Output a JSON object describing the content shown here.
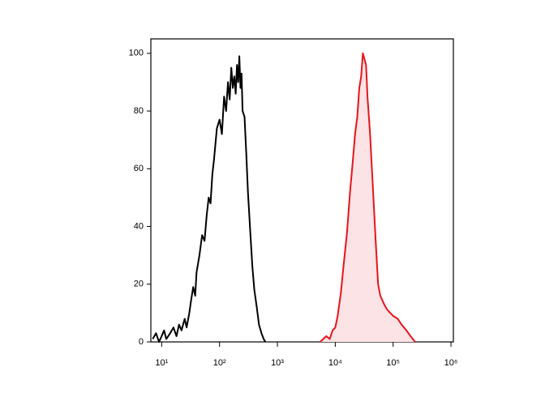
{
  "chart_data": {
    "type": "line",
    "log_x": true,
    "xlim": [
      6.5,
      1100000
    ],
    "ylim": [
      0,
      105
    ],
    "xticks": [
      {
        "value": 10,
        "label": "10¹"
      },
      {
        "value": 100,
        "label": "10²"
      },
      {
        "value": 1000,
        "label": "10³"
      },
      {
        "value": 10000,
        "label": "10⁴"
      },
      {
        "value": 100000,
        "label": "10⁵"
      },
      {
        "value": 1000000,
        "label": "10⁶"
      }
    ],
    "yticks": [
      0,
      20,
      40,
      60,
      80,
      100
    ],
    "series": [
      {
        "color": "#000000",
        "fill": null,
        "x": [
          7,
          8,
          9,
          10,
          11,
          12,
          14,
          16,
          18,
          20,
          22,
          25,
          27,
          30,
          32,
          35,
          38,
          40,
          45,
          50,
          55,
          60,
          65,
          70,
          75,
          80,
          90,
          100,
          110,
          120,
          130,
          140,
          150,
          160,
          170,
          180,
          190,
          200,
          210,
          220,
          230,
          240,
          250,
          270,
          290,
          310,
          340,
          370,
          400,
          440,
          480,
          530,
          580,
          620
        ],
        "values": [
          1,
          3,
          0,
          2,
          4,
          1,
          3,
          5,
          2,
          6,
          4,
          8,
          5,
          10,
          14,
          19,
          16,
          24,
          30,
          37,
          35,
          44,
          50,
          48,
          58,
          63,
          74,
          77,
          72,
          85,
          80,
          90,
          84,
          95,
          88,
          92,
          86,
          96,
          90,
          99,
          88,
          93,
          80,
          78,
          65,
          52,
          38,
          26,
          18,
          12,
          6,
          3,
          1,
          0
        ]
      },
      {
        "color": "#e8141c",
        "fill": "#fce3e5",
        "x": [
          5500,
          6200,
          7000,
          8000,
          9000,
          10000,
          11000,
          12500,
          14000,
          16000,
          18000,
          20000,
          22000,
          24000,
          26000,
          28000,
          30000,
          32000,
          34000,
          36000,
          40000,
          44000,
          50000,
          55000,
          60000,
          70000,
          80000,
          90000,
          100000,
          120000,
          140000,
          170000,
          200000,
          240000
        ],
        "values": [
          0,
          1,
          2,
          1,
          4,
          5,
          9,
          17,
          27,
          38,
          52,
          62,
          72,
          78,
          88,
          92,
          100,
          98,
          96,
          85,
          72,
          56,
          35,
          20,
          16,
          13,
          11,
          10,
          9,
          8,
          6,
          4,
          2,
          0
        ]
      }
    ]
  }
}
